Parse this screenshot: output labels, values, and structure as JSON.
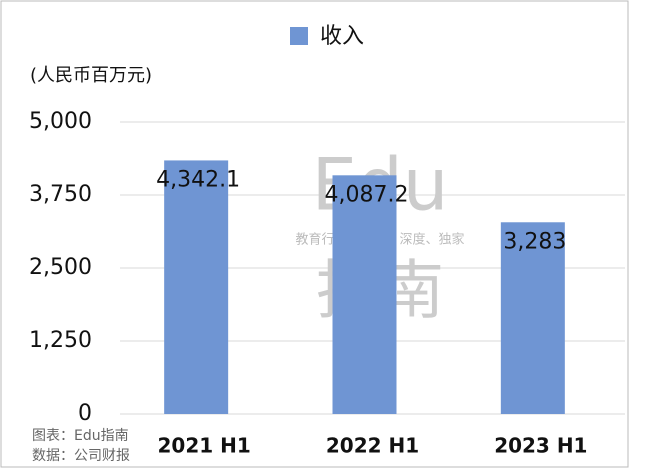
{
  "chart_data": {
    "type": "bar",
    "ylabel": "(人民币百万元)",
    "categories": [
      "2021 H1",
      "2022 H1",
      "2023 H1"
    ],
    "series": [
      {
        "name": "收入",
        "color": "#6f95d3",
        "values": [
          4342.1,
          4087.2,
          3283
        ],
        "value_labels": [
          "4,342.1",
          "4,087.2",
          "3,283"
        ]
      }
    ],
    "ylim": [
      0,
      5000
    ],
    "yticks": [
      0,
      {
        "value": 1250,
        "label": "1,250"
      },
      {
        "value": 2500,
        "label": "2,500"
      },
      {
        "value": 3750,
        "label": "3,750"
      },
      {
        "value": 5000,
        "label": "5,000"
      }
    ],
    "grid": true,
    "legend": "top",
    "annotations": [
      "Edu",
      "教育行业，前沿、深度、独家",
      "指南",
      "图表：Edu指南",
      "数据：公司财报"
    ]
  }
}
